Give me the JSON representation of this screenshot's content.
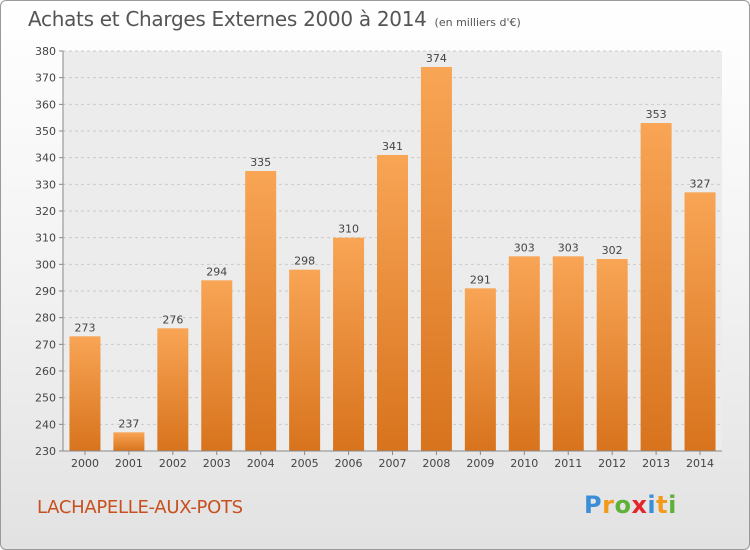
{
  "header": {
    "title": "Achats et Charges Externes 2000 à 2014",
    "subtitle": "(en milliers d'€)"
  },
  "footer": {
    "city": "LACHAPELLE-AUX-POTS",
    "logo_letters": [
      {
        "ch": "P",
        "color": "#3a8fd8"
      },
      {
        "ch": "r",
        "color": "#f29a1a"
      },
      {
        "ch": "o",
        "color": "#5fb13a"
      },
      {
        "ch": "x",
        "color": "#e2262b"
      },
      {
        "ch": "i",
        "color": "#3a8fd8"
      },
      {
        "ch": "t",
        "color": "#f29a1a"
      },
      {
        "ch": "i",
        "color": "#5fb13a"
      }
    ]
  },
  "chart_data": {
    "type": "bar",
    "title": "Achats et Charges Externes 2000 à 2014",
    "subtitle": "(en milliers d'€)",
    "categories": [
      "2000",
      "2001",
      "2002",
      "2003",
      "2004",
      "2005",
      "2006",
      "2007",
      "2008",
      "2009",
      "2010",
      "2011",
      "2012",
      "2013",
      "2014"
    ],
    "values": [
      273,
      237,
      276,
      294,
      335,
      298,
      310,
      341,
      374,
      291,
      303,
      303,
      302,
      353,
      327
    ],
    "ylim": [
      230,
      380
    ],
    "yticks": [
      230,
      240,
      250,
      260,
      270,
      280,
      290,
      300,
      310,
      320,
      330,
      340,
      350,
      360,
      370,
      380
    ],
    "grid": true,
    "bar_color_top": "#f8a555",
    "bar_color_bottom": "#d8731d"
  }
}
